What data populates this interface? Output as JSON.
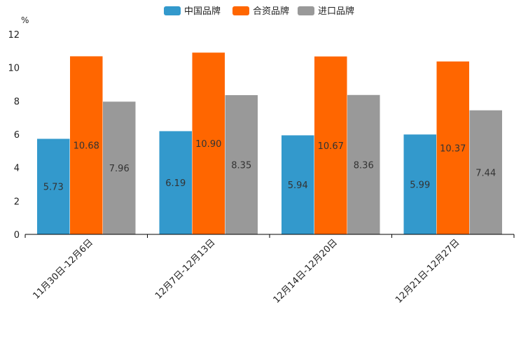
{
  "chart_data": {
    "type": "bar",
    "title": "",
    "unit": "%",
    "xlabel": "",
    "ylabel": "",
    "ylim": [
      0,
      12
    ],
    "yticks": [
      0,
      2,
      4,
      6,
      8,
      10,
      12
    ],
    "categories": [
      "11月30日-12月6日",
      "12月7日-12月13日",
      "12月14日-12月20日",
      "12月21日-12月27日"
    ],
    "series": [
      {
        "name": "中国品牌",
        "color": "#3399cc",
        "values": [
          5.73,
          6.19,
          5.94,
          5.99
        ]
      },
      {
        "name": "合资品牌",
        "color": "#ff6600",
        "values": [
          10.68,
          10.9,
          10.67,
          10.37
        ]
      },
      {
        "name": "进口品牌",
        "color": "#999999",
        "values": [
          7.96,
          8.35,
          8.36,
          7.44
        ]
      }
    ],
    "legend_position": "top-center",
    "grid": false
  }
}
